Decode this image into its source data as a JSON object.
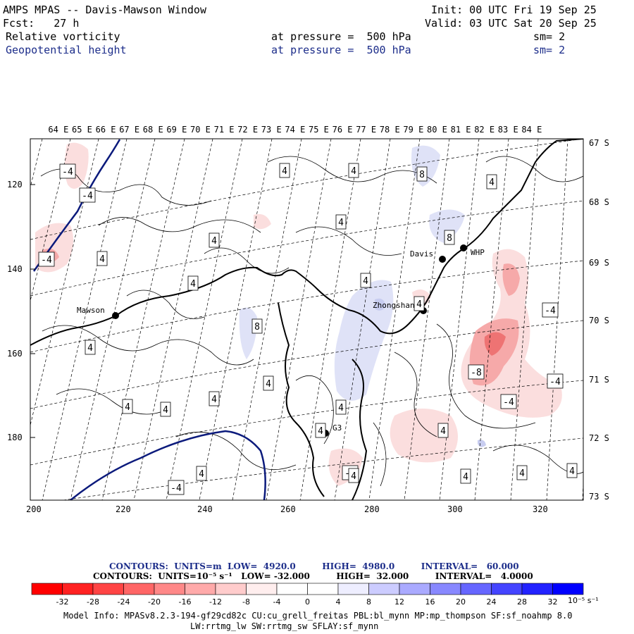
{
  "header": {
    "title": "AMPS MPAS -- Davis-Mawson Window",
    "fcst": "Fcst:   27 h",
    "init": "Init: 00 UTC Fri 19 Sep 25",
    "valid": "Valid: 03 UTC Sat 20 Sep 25",
    "field1": {
      "name": "Relative vorticity",
      "level": "at pressure =  500 hPa",
      "sm": "sm= 2"
    },
    "field2": {
      "name": "Geopotential height",
      "level": "at pressure =  500 hPa",
      "sm": "sm= 2"
    }
  },
  "map": {
    "lon_labels": [
      "64 E",
      "65 E",
      "66 E",
      "67 E",
      "68 E",
      "69 E",
      "70 E",
      "71 E",
      "72 E",
      "73 E",
      "74 E",
      "75 E",
      "76 E",
      "77 E",
      "78 E",
      "79 E",
      "80 E",
      "81 E",
      "82 E",
      "83 E",
      "84 E"
    ],
    "lat_labels": [
      "67 S",
      "68 S",
      "69 S",
      "70 S",
      "71 S",
      "72 S",
      "73 S"
    ],
    "y_ticks": [
      "120",
      "140",
      "160",
      "180"
    ],
    "x_ticks": [
      "200",
      "220",
      "240",
      "260",
      "280",
      "300",
      "320"
    ],
    "stations": [
      {
        "name": "Mawson"
      },
      {
        "name": "Davis"
      },
      {
        "name": "WHP"
      },
      {
        "name": "Zhongshan"
      },
      {
        "name": "G3"
      }
    ],
    "contour_labels": [
      "-4",
      "-4",
      "4",
      "4",
      "8",
      "4",
      "4",
      "8",
      "-4",
      "4",
      "4",
      "4",
      "8",
      "4",
      "4",
      "4",
      "-4",
      "4",
      "-8",
      "-4",
      "4",
      "4",
      "4",
      "-4",
      "4",
      "4",
      "4",
      "-4",
      "4",
      "-4",
      "4",
      "4",
      "4",
      "4",
      "4",
      "8",
      "4",
      "4",
      "4",
      "4",
      "4"
    ],
    "colors": {
      "pos_light": "#fbdede",
      "pos_mid": "#f6a9a9",
      "pos_strong": "#ee7373",
      "neg_light": "#dfe2f7",
      "neg_mid": "#c8cdf0",
      "coast": "#000000",
      "height_contour": "#0b1a7c"
    }
  },
  "legend": {
    "contours1": "CONTOURS:  UNITS=m  LOW=  4920.0         HIGH=  4980.0         INTERVAL=   60.000",
    "contours2": "CONTOURS:  UNITS=10⁻⁵ s⁻¹   LOW= -32.000         HIGH=  32.000         INTERVAL=   4.0000",
    "colorbar_labels": [
      "-32",
      "-28",
      "-24",
      "-20",
      "-16",
      "-12",
      "-8",
      "-4",
      "0",
      "4",
      "8",
      "12",
      "16",
      "20",
      "24",
      "28",
      "32"
    ],
    "colorbar_units": "10⁻⁵ s⁻¹",
    "colorbar_colors": [
      "#ff0000",
      "#ff2222",
      "#ff4444",
      "#ff6666",
      "#ff8888",
      "#ffaaaa",
      "#ffcccc",
      "#ffeeee",
      "#ffffff",
      "#ffffff",
      "#eeeeff",
      "#ccccff",
      "#aaaaff",
      "#8888ff",
      "#6666ff",
      "#4444ff",
      "#2222ff",
      "#0000ff"
    ]
  },
  "model_info": {
    "line1": "Model Info: MPASv8.2.3-194-gf29cd82c CU:cu_grell_freitas PBL:bl_mynn MP:mp_thompson SF:sf_noahmp 8.0",
    "line2": "LW:rrtmg_lw SW:rrtmg_sw SFLAY:sf_mynn"
  }
}
